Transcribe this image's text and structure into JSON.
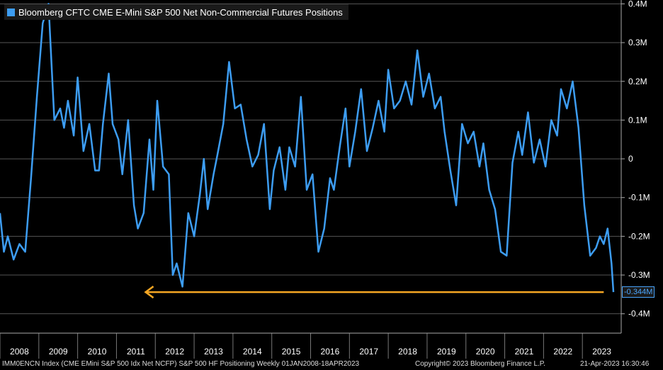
{
  "legend": {
    "label": "Bloomberg CFTC CME E-Mini S&P 500 Net Non-Commercial Futures Positions",
    "color": "#3d9df2"
  },
  "last_value_label": "-0.344M",
  "footer": {
    "left": "IMM0ENCN Index (CME EMini S&P 500 Idx Net NCFP) S&P 500 HF Positioning  Weekly 01JAN2008-18APR2023",
    "center": "Copyright© 2023 Bloomberg Finance L.P.",
    "right": "21-Apr-2023 16:30:46"
  },
  "colors": {
    "series": "#3d9df2",
    "arrow": "#f5a623",
    "grid": "#555555",
    "background": "#000000"
  },
  "chart_data": {
    "type": "line",
    "title": "Bloomberg CFTC CME E-Mini S&P 500 Net Non-Commercial Futures Positions",
    "grid": true,
    "legend_position": "top-left",
    "y_axis_position": "right",
    "ylim": [
      -0.45,
      0.41
    ],
    "xlim": [
      2007.5,
      2023.5
    ],
    "y_ticks": [
      0.4,
      0.3,
      0.2,
      0.1,
      0,
      -0.1,
      -0.2,
      -0.3,
      -0.4
    ],
    "y_tick_labels": [
      "0.4M",
      "0.3M",
      "0.2M",
      "0.1M",
      "0",
      "-0.1M",
      "-0.2M",
      "-0.3M",
      "-0.4M"
    ],
    "x_ticks": [
      2008,
      2009,
      2010,
      2011,
      2012,
      2013,
      2014,
      2015,
      2016,
      2017,
      2018,
      2019,
      2020,
      2021,
      2022,
      2023
    ],
    "x_tick_labels": [
      "2008",
      "2009",
      "2010",
      "2011",
      "2012",
      "2013",
      "2014",
      "2015",
      "2016",
      "2017",
      "2018",
      "2019",
      "2020",
      "2021",
      "2022",
      "2023"
    ],
    "series": [
      {
        "name": "Bloomberg CFTC CME E-Mini S&P 500 Net Non-Commercial Futures Positions",
        "x": [
          2007.5,
          2007.6,
          2007.7,
          2007.85,
          2008.0,
          2008.15,
          2008.3,
          2008.45,
          2008.6,
          2008.75,
          2008.9,
          2009.05,
          2009.15,
          2009.25,
          2009.4,
          2009.5,
          2009.65,
          2009.8,
          2009.95,
          2010.05,
          2010.15,
          2010.3,
          2010.4,
          2010.55,
          2010.65,
          2010.8,
          2010.95,
          2011.05,
          2011.2,
          2011.35,
          2011.45,
          2011.55,
          2011.7,
          2011.85,
          2011.95,
          2012.05,
          2012.2,
          2012.35,
          2012.5,
          2012.65,
          2012.75,
          2012.85,
          2013.0,
          2013.1,
          2013.25,
          2013.4,
          2013.55,
          2013.7,
          2013.85,
          2014.0,
          2014.15,
          2014.3,
          2014.45,
          2014.55,
          2014.7,
          2014.85,
          2014.95,
          2015.1,
          2015.25,
          2015.4,
          2015.55,
          2015.7,
          2015.85,
          2016.0,
          2016.1,
          2016.25,
          2016.4,
          2016.5,
          2016.65,
          2016.8,
          2016.95,
          2017.1,
          2017.25,
          2017.4,
          2017.5,
          2017.65,
          2017.8,
          2017.95,
          2018.1,
          2018.25,
          2018.4,
          2018.55,
          2018.7,
          2018.85,
          2018.95,
          2019.1,
          2019.25,
          2019.4,
          2019.55,
          2019.7,
          2019.85,
          2019.95,
          2020.1,
          2020.25,
          2020.4,
          2020.55,
          2020.7,
          2020.85,
          2020.95,
          2021.1,
          2021.25,
          2021.4,
          2021.55,
          2021.7,
          2021.85,
          2021.95,
          2022.1,
          2022.25,
          2022.4,
          2022.55,
          2022.7,
          2022.85,
          2022.95,
          2023.05,
          2023.15,
          2023.25,
          2023.3
        ],
        "values": [
          -0.14,
          -0.24,
          -0.2,
          -0.26,
          -0.22,
          -0.24,
          -0.05,
          0.16,
          0.35,
          0.4,
          0.1,
          0.13,
          0.08,
          0.15,
          0.06,
          0.21,
          0.02,
          0.09,
          -0.03,
          -0.03,
          0.09,
          0.22,
          0.09,
          0.05,
          -0.04,
          0.1,
          -0.12,
          -0.18,
          -0.14,
          0.05,
          -0.08,
          0.15,
          -0.02,
          -0.04,
          -0.3,
          -0.27,
          -0.33,
          -0.14,
          -0.2,
          -0.09,
          0.0,
          -0.13,
          -0.04,
          0.01,
          0.09,
          0.25,
          0.13,
          0.14,
          0.05,
          -0.02,
          0.01,
          0.09,
          -0.13,
          -0.03,
          0.03,
          -0.08,
          0.03,
          -0.02,
          0.16,
          -0.08,
          -0.04,
          -0.24,
          -0.18,
          -0.05,
          -0.08,
          0.03,
          0.13,
          -0.02,
          0.07,
          0.18,
          0.02,
          0.08,
          0.15,
          0.07,
          0.23,
          0.13,
          0.15,
          0.2,
          0.14,
          0.28,
          0.16,
          0.22,
          0.13,
          0.16,
          0.07,
          -0.03,
          -0.12,
          0.09,
          0.04,
          0.07,
          -0.02,
          0.04,
          -0.08,
          -0.13,
          -0.24,
          -0.25,
          -0.01,
          0.07,
          0.01,
          0.12,
          -0.01,
          0.05,
          -0.02,
          0.1,
          0.06,
          0.18,
          0.13,
          0.2,
          0.08,
          -0.12,
          -0.25,
          -0.23,
          -0.2,
          -0.22,
          -0.18,
          -0.27,
          -0.344
        ]
      }
    ],
    "annotations": [
      {
        "type": "arrow",
        "label": "",
        "from": [
          2023.05,
          -0.344
        ],
        "to": [
          2011.25,
          -0.344
        ]
      }
    ]
  }
}
